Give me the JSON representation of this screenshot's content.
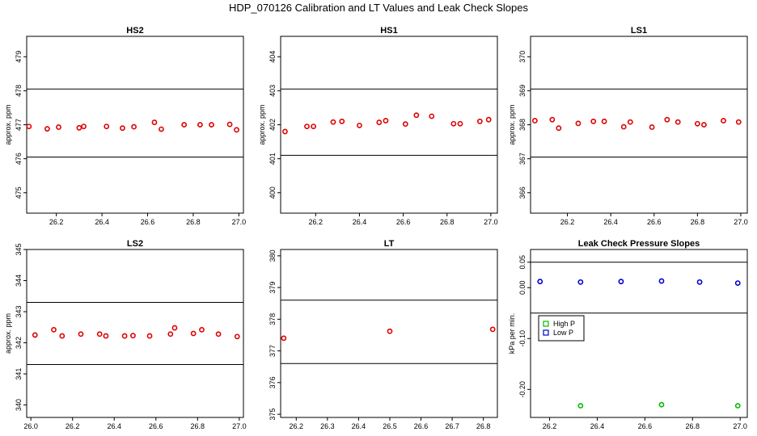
{
  "title": "HDP_070126  Calibration and LT Values and Leak Check Slopes",
  "colors": {
    "red": "#dd0000",
    "green": "#00bb00",
    "blue": "#0000cc"
  },
  "chart_data": [
    {
      "type": "scatter",
      "title": "HS2",
      "ylabel": "approx. ppm",
      "xlim": [
        26.07,
        27.02
      ],
      "ylim": [
        474.4,
        479.6
      ],
      "xticks": [
        {
          "v": 26.2,
          "label": "26.2"
        },
        {
          "v": 26.4,
          "label": "26.4"
        },
        {
          "v": 26.6,
          "label": "26.6"
        },
        {
          "v": 26.8,
          "label": "26.8"
        },
        {
          "v": 27.0,
          "label": "27.0"
        }
      ],
      "yticks": [
        {
          "v": 475,
          "label": "475"
        },
        {
          "v": 476,
          "label": "476"
        },
        {
          "v": 477,
          "label": "477"
        },
        {
          "v": 478,
          "label": "478"
        },
        {
          "v": 479,
          "label": "479"
        }
      ],
      "hlines": [
        476.05,
        478.05
      ],
      "series": [
        {
          "color": "red",
          "x": [
            26.08,
            26.16,
            26.21,
            26.3,
            26.32,
            26.42,
            26.49,
            26.54,
            26.63,
            26.66,
            26.76,
            26.83,
            26.88,
            26.96,
            26.99
          ],
          "y": [
            476.95,
            476.88,
            476.93,
            476.91,
            476.95,
            476.95,
            476.9,
            476.94,
            477.07,
            476.87,
            477.0,
            477.0,
            477.0,
            477.01,
            476.85
          ]
        }
      ]
    },
    {
      "type": "scatter",
      "title": "HS1",
      "ylabel": "approx. ppm",
      "xlim": [
        26.04,
        27.03
      ],
      "ylim": [
        399.4,
        404.6
      ],
      "xticks": [
        {
          "v": 26.2,
          "label": "26.2"
        },
        {
          "v": 26.4,
          "label": "26.4"
        },
        {
          "v": 26.6,
          "label": "26.6"
        },
        {
          "v": 26.8,
          "label": "26.8"
        },
        {
          "v": 27.0,
          "label": "27.0"
        }
      ],
      "yticks": [
        {
          "v": 400,
          "label": "400"
        },
        {
          "v": 401,
          "label": "401"
        },
        {
          "v": 402,
          "label": "402"
        },
        {
          "v": 403,
          "label": "403"
        },
        {
          "v": 404,
          "label": "404"
        }
      ],
      "hlines": [
        401.1,
        403.05
      ],
      "series": [
        {
          "color": "red",
          "x": [
            26.06,
            26.16,
            26.19,
            26.28,
            26.32,
            26.4,
            26.49,
            26.52,
            26.61,
            26.66,
            26.73,
            26.83,
            26.86,
            26.95,
            26.99
          ],
          "y": [
            401.8,
            401.95,
            401.95,
            402.08,
            402.1,
            401.98,
            402.07,
            402.12,
            402.02,
            402.28,
            402.25,
            402.03,
            402.03,
            402.1,
            402.15
          ]
        }
      ]
    },
    {
      "type": "scatter",
      "title": "LS1",
      "ylabel": "approx. ppm",
      "xlim": [
        26.03,
        27.03
      ],
      "ylim": [
        365.4,
        370.6
      ],
      "xticks": [
        {
          "v": 26.2,
          "label": "26.2"
        },
        {
          "v": 26.4,
          "label": "26.4"
        },
        {
          "v": 26.6,
          "label": "26.6"
        },
        {
          "v": 26.8,
          "label": "26.8"
        },
        {
          "v": 27.0,
          "label": "27.0"
        }
      ],
      "yticks": [
        {
          "v": 366,
          "label": "366"
        },
        {
          "v": 367,
          "label": "367"
        },
        {
          "v": 368,
          "label": "368"
        },
        {
          "v": 369,
          "label": "369"
        },
        {
          "v": 370,
          "label": "370"
        }
      ],
      "hlines": [
        367.05,
        369.05
      ],
      "series": [
        {
          "color": "red",
          "x": [
            26.05,
            26.13,
            26.16,
            26.25,
            26.32,
            26.37,
            26.46,
            26.49,
            26.59,
            26.66,
            26.71,
            26.8,
            26.83,
            26.92,
            26.99
          ],
          "y": [
            368.12,
            368.15,
            367.9,
            368.04,
            368.1,
            368.1,
            367.94,
            368.08,
            367.93,
            368.15,
            368.08,
            368.03,
            368.0,
            368.12,
            368.08
          ]
        }
      ]
    },
    {
      "type": "scatter",
      "title": "LS2",
      "ylabel": "approx. ppm",
      "xlim": [
        25.98,
        27.02
      ],
      "ylim": [
        339.6,
        345.0
      ],
      "xticks": [
        {
          "v": 26.0,
          "label": "26.0"
        },
        {
          "v": 26.2,
          "label": "26.2"
        },
        {
          "v": 26.4,
          "label": "26.4"
        },
        {
          "v": 26.6,
          "label": "26.6"
        },
        {
          "v": 26.8,
          "label": "26.8"
        },
        {
          "v": 27.0,
          "label": "27.0"
        }
      ],
      "yticks": [
        {
          "v": 340,
          "label": "340"
        },
        {
          "v": 341,
          "label": "341"
        },
        {
          "v": 342,
          "label": "342"
        },
        {
          "v": 343,
          "label": "343"
        },
        {
          "v": 344,
          "label": "344"
        },
        {
          "v": 345,
          "label": "345"
        }
      ],
      "hlines": [
        341.3,
        343.3
      ],
      "series": [
        {
          "color": "red",
          "x": [
            26.02,
            26.11,
            26.15,
            26.24,
            26.33,
            26.36,
            26.45,
            26.49,
            26.57,
            26.67,
            26.69,
            26.78,
            26.82,
            26.9,
            26.99
          ],
          "y": [
            342.25,
            342.42,
            342.22,
            342.28,
            342.28,
            342.22,
            342.22,
            342.23,
            342.22,
            342.28,
            342.48,
            342.3,
            342.42,
            342.28,
            342.2
          ]
        }
      ]
    },
    {
      "type": "scatter",
      "title": "LT",
      "ylabel": "",
      "xlim": [
        26.15,
        26.845
      ],
      "ylim": [
        374.9,
        380.2
      ],
      "xticks": [
        {
          "v": 26.2,
          "label": "26.2"
        },
        {
          "v": 26.3,
          "label": "26.3"
        },
        {
          "v": 26.4,
          "label": "26.4"
        },
        {
          "v": 26.5,
          "label": "26.5"
        },
        {
          "v": 26.6,
          "label": "26.6"
        },
        {
          "v": 26.7,
          "label": "26.7"
        },
        {
          "v": 26.8,
          "label": "26.8"
        }
      ],
      "yticks": [
        {
          "v": 375,
          "label": "375"
        },
        {
          "v": 376,
          "label": "376"
        },
        {
          "v": 377,
          "label": "377"
        },
        {
          "v": 378,
          "label": "378"
        },
        {
          "v": 379,
          "label": "379"
        },
        {
          "v": 380,
          "label": "380"
        }
      ],
      "hlines": [
        376.6,
        378.6
      ],
      "series": [
        {
          "color": "red",
          "x": [
            26.16,
            26.5,
            26.83
          ],
          "y": [
            377.4,
            377.62,
            377.68
          ]
        }
      ]
    },
    {
      "type": "scatter",
      "title": "Leak Check Pressure Slopes",
      "ylabel": "kPa per min.",
      "xlim": [
        26.12,
        27.03
      ],
      "ylim": [
        -0.255,
        0.075
      ],
      "xticks": [
        {
          "v": 26.2,
          "label": "26.2"
        },
        {
          "v": 26.4,
          "label": "26.4"
        },
        {
          "v": 26.6,
          "label": "26.6"
        },
        {
          "v": 26.8,
          "label": "26.8"
        },
        {
          "v": 27.0,
          "label": "27.0"
        }
      ],
      "yticks": [
        {
          "v": -0.2,
          "label": "-0.20"
        },
        {
          "v": -0.1,
          "label": "-0.10"
        },
        {
          "v": 0.0,
          "label": "0.00"
        },
        {
          "v": 0.05,
          "label": "0.05"
        }
      ],
      "hlines": [
        -0.05,
        0.05
      ],
      "legend": {
        "position": "left",
        "entries": [
          "High P",
          "Low P"
        ]
      },
      "series": [
        {
          "name": "High P",
          "color": "green",
          "x": [
            26.33,
            26.67,
            26.99
          ],
          "y": [
            -0.232,
            -0.23,
            -0.232
          ]
        },
        {
          "name": "Low P",
          "color": "blue",
          "x": [
            26.16,
            26.33,
            26.5,
            26.67,
            26.83,
            26.99
          ],
          "y": [
            0.012,
            0.011,
            0.012,
            0.013,
            0.011,
            0.009
          ]
        }
      ]
    }
  ]
}
